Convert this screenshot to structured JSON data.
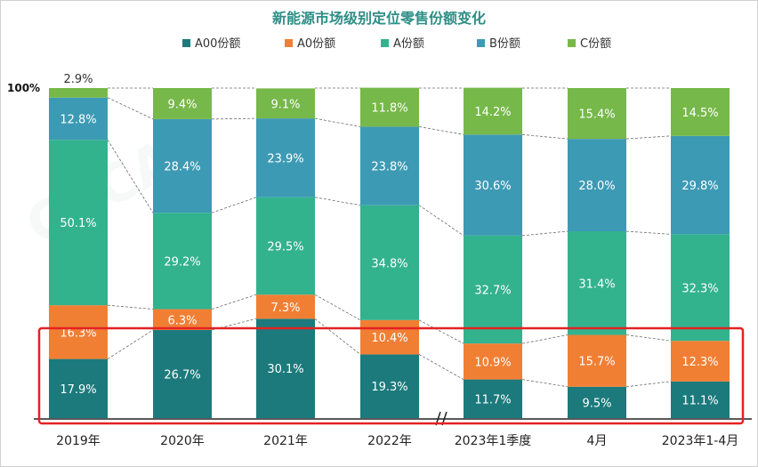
{
  "chart_data": {
    "type": "bar",
    "stacked": true,
    "normalized": true,
    "title": "新能源市场级别定位零售份额变化",
    "top_label": "100%",
    "categories": [
      "2019年",
      "2020年",
      "2021年",
      "2022年",
      "2023年1季度",
      "4月",
      "2023年1-4月"
    ],
    "series": [
      {
        "name": "A00份额",
        "color": "#1c7a7c",
        "values": [
          17.9,
          26.7,
          30.1,
          19.3,
          11.7,
          9.5,
          11.1
        ],
        "labels": [
          "17.9%",
          "26.7%",
          "30.1%",
          "19.3%",
          "11.7%",
          "9.5%",
          "11.1%"
        ]
      },
      {
        "name": "A0份额",
        "color": "#f07f34",
        "values": [
          16.3,
          6.3,
          7.3,
          10.4,
          10.9,
          15.7,
          12.3
        ],
        "labels": [
          "16.3%",
          "6.3%",
          "7.3%",
          "10.4%",
          "10.9%",
          "15.7%",
          "12.3%"
        ]
      },
      {
        "name": "A份额",
        "color": "#33b28e",
        "values": [
          50.1,
          29.2,
          29.5,
          34.8,
          32.7,
          31.4,
          32.3
        ],
        "labels": [
          "50.1%",
          "29.2%",
          "29.5%",
          "34.8%",
          "32.7%",
          "31.4%",
          "32.3%"
        ]
      },
      {
        "name": "B份额",
        "color": "#3d9ab4",
        "values": [
          12.8,
          28.4,
          23.9,
          23.8,
          30.6,
          28.0,
          29.8
        ],
        "labels": [
          "12.8%",
          "28.4%",
          "23.9%",
          "23.8%",
          "30.6%",
          "28.0%",
          "29.8%"
        ]
      },
      {
        "name": "C份额",
        "color": "#77b84a",
        "values": [
          2.9,
          9.4,
          9.1,
          11.8,
          14.2,
          15.4,
          14.5
        ],
        "labels": [
          "2.9%",
          "9.4%",
          "9.1%",
          "11.8%",
          "14.2%",
          "15.4%",
          "14.5%"
        ]
      }
    ],
    "axis_break_after_category": 3,
    "highlighted_series": [
      "A00份额",
      "A0份额"
    ],
    "ylim": [
      0,
      100
    ],
    "legend": "top"
  }
}
